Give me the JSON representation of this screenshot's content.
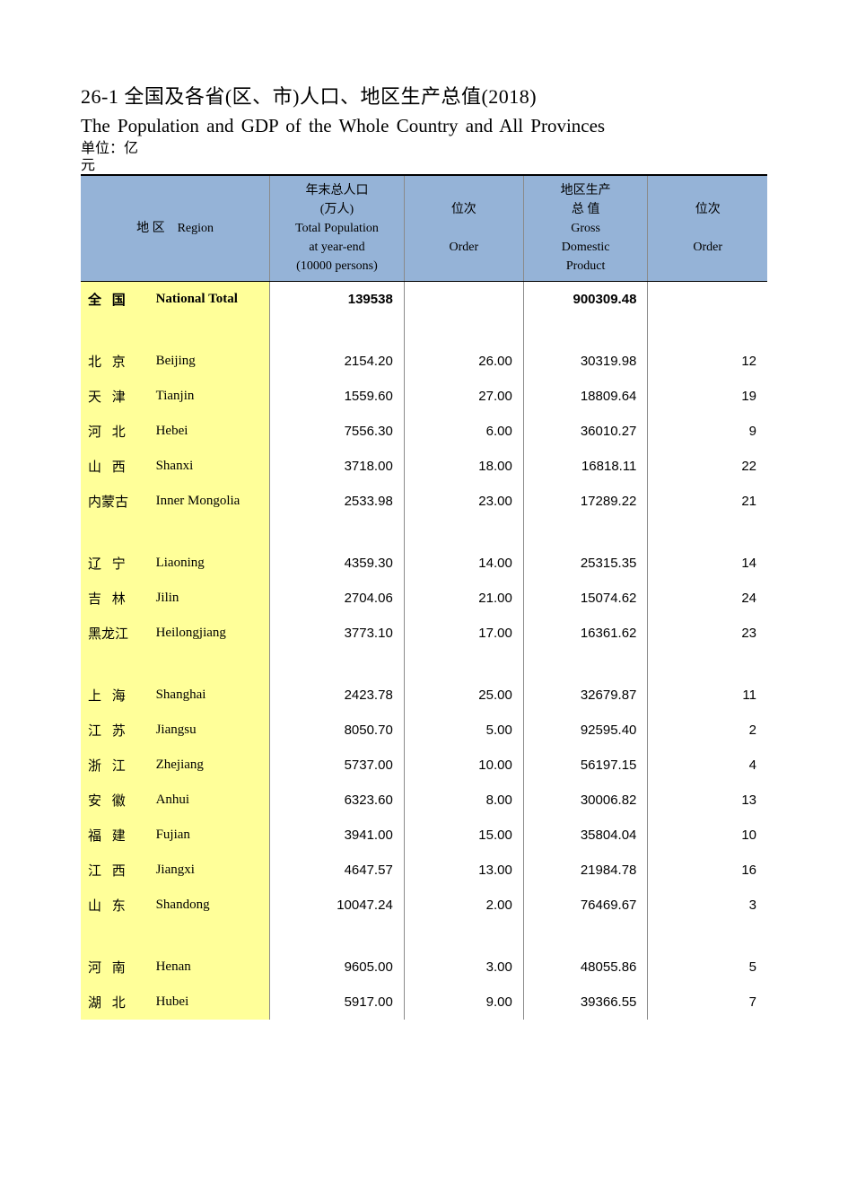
{
  "titles": {
    "cn": "26-1 全国及各省(区、市)人口、地区生产总值(2018)",
    "en": "The Population and GDP of the Whole Country and All Provinces",
    "unit_line1": "单位：亿",
    "unit_line2": "元"
  },
  "styling": {
    "header_bg": "#95b3d7",
    "region_bg": "#ffff99",
    "page_bg": "#ffffff",
    "title_fontsize": 22,
    "subtitle_fontsize": 21,
    "header_fontsize": 14,
    "body_fontsize": 15,
    "border_top": "2px solid #000000",
    "border_inner": "1px solid #8a8a8a"
  },
  "table": {
    "columns": [
      {
        "cn": "地 区",
        "en": "Region",
        "align": "left"
      },
      {
        "cn_l1": "年末总人口",
        "cn_l2": "(万人)",
        "en_l1": "Total Population",
        "en_l2": "at year-end",
        "en_l3": "(10000 persons)",
        "align": "right"
      },
      {
        "cn": "位次",
        "en": "Order",
        "align": "right"
      },
      {
        "cn_l1": "地区生产",
        "cn_l2": "总 值",
        "en_l1": "Gross",
        "en_l2": "Domestic",
        "en_l3": "Product",
        "align": "right"
      },
      {
        "cn": "位次",
        "en": "Order",
        "align": "right"
      }
    ],
    "total_row": {
      "region_cn": "全 国",
      "region_en": "National  Total",
      "population": "139538",
      "gdp": "900309.48"
    },
    "groups": [
      {
        "rows": [
          {
            "region_cn": "北 京",
            "region_en": "Beijing",
            "population": "2154.20",
            "pop_order": "26.00",
            "gdp": "30319.98",
            "gdp_order": "12"
          },
          {
            "region_cn": "天 津",
            "region_en": "Tianjin",
            "population": "1559.60",
            "pop_order": "27.00",
            "gdp": "18809.64",
            "gdp_order": "19"
          },
          {
            "region_cn": "河 北",
            "region_en": "Hebei",
            "population": "7556.30",
            "pop_order": "6.00",
            "gdp": "36010.27",
            "gdp_order": "9"
          },
          {
            "region_cn": "山 西",
            "region_en": "Shanxi",
            "population": "3718.00",
            "pop_order": "18.00",
            "gdp": "16818.11",
            "gdp_order": "22"
          },
          {
            "region_cn": "内蒙古",
            "region_en": "Inner Mongolia",
            "population": "2533.98",
            "pop_order": "23.00",
            "gdp": "17289.22",
            "gdp_order": "21",
            "tight": true
          }
        ]
      },
      {
        "rows": [
          {
            "region_cn": "辽 宁",
            "region_en": "Liaoning",
            "population": "4359.30",
            "pop_order": "14.00",
            "gdp": "25315.35",
            "gdp_order": "14"
          },
          {
            "region_cn": "吉 林",
            "region_en": "Jilin",
            "population": "2704.06",
            "pop_order": "21.00",
            "gdp": "15074.62",
            "gdp_order": "24"
          },
          {
            "region_cn": "黑龙江",
            "region_en": "Heilongjiang",
            "population": "3773.10",
            "pop_order": "17.00",
            "gdp": "16361.62",
            "gdp_order": "23",
            "tight": true
          }
        ]
      },
      {
        "rows": [
          {
            "region_cn": "上 海",
            "region_en": "Shanghai",
            "population": "2423.78",
            "pop_order": "25.00",
            "gdp": "32679.87",
            "gdp_order": "11"
          },
          {
            "region_cn": "江 苏",
            "region_en": "Jiangsu",
            "population": "8050.70",
            "pop_order": "5.00",
            "gdp": "92595.40",
            "gdp_order": "2"
          },
          {
            "region_cn": "浙 江",
            "region_en": "Zhejiang",
            "population": "5737.00",
            "pop_order": "10.00",
            "gdp": "56197.15",
            "gdp_order": "4"
          },
          {
            "region_cn": "安 徽",
            "region_en": "Anhui",
            "population": "6323.60",
            "pop_order": "8.00",
            "gdp": "30006.82",
            "gdp_order": "13"
          },
          {
            "region_cn": "福 建",
            "region_en": "Fujian",
            "population": "3941.00",
            "pop_order": "15.00",
            "gdp": "35804.04",
            "gdp_order": "10"
          },
          {
            "region_cn": "江 西",
            "region_en": "Jiangxi",
            "population": "4647.57",
            "pop_order": "13.00",
            "gdp": "21984.78",
            "gdp_order": "16"
          },
          {
            "region_cn": "山 东",
            "region_en": "Shandong",
            "population": "10047.24",
            "pop_order": "2.00",
            "gdp": "76469.67",
            "gdp_order": "3"
          }
        ]
      },
      {
        "rows": [
          {
            "region_cn": "河 南",
            "region_en": "Henan",
            "population": "9605.00",
            "pop_order": "3.00",
            "gdp": "48055.86",
            "gdp_order": "5"
          },
          {
            "region_cn": "湖 北",
            "region_en": "Hubei",
            "population": "5917.00",
            "pop_order": "9.00",
            "gdp": "39366.55",
            "gdp_order": "7"
          }
        ]
      }
    ]
  }
}
